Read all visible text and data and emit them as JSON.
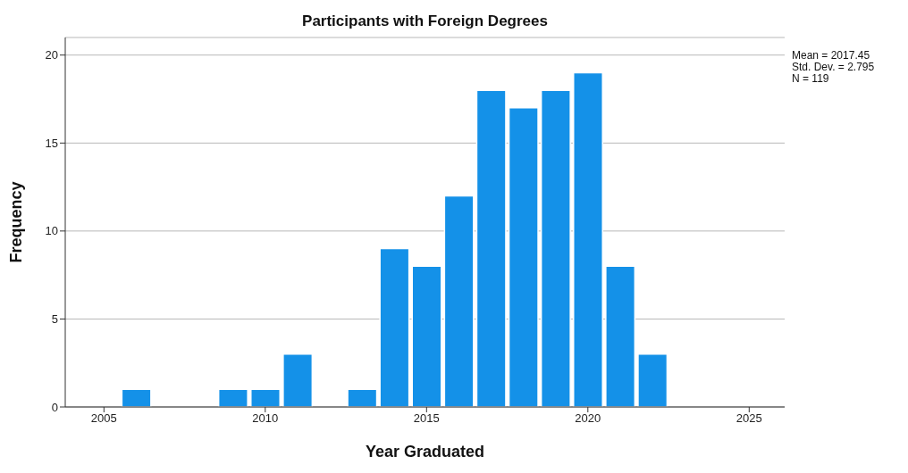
{
  "chart_data": {
    "type": "histogram",
    "title": "Participants with Foreign Degrees",
    "xlabel": "Year Graduated",
    "ylabel": "Frequency",
    "bins": [
      2005.5,
      2006.5,
      2007.5,
      2008.5,
      2009.5,
      2010.5,
      2011.5,
      2012.5,
      2013.5,
      2014.5,
      2015.5,
      2016.5,
      2017.5,
      2018.5,
      2019.5,
      2020.5,
      2021.5,
      2022.5
    ],
    "values": [
      1,
      0,
      0,
      1,
      1,
      3,
      0,
      1,
      9,
      8,
      12,
      18,
      17,
      18,
      19,
      8,
      3
    ],
    "color": "#1491e8",
    "xlim": [
      2003.8,
      2026.1
    ],
    "xticks": [
      2005,
      2010,
      2015,
      2020,
      2025
    ],
    "ylim": [
      0,
      21
    ],
    "yticks": [
      0,
      5,
      10,
      15,
      20
    ],
    "grid": "y",
    "annotations": [
      "Mean = 2017.45",
      "Std. Dev. = 2.795",
      "N = 119"
    ]
  }
}
